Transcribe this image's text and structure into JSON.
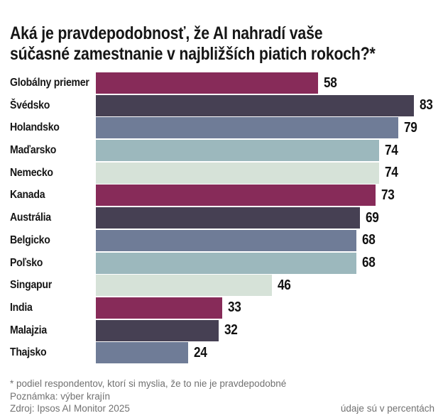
{
  "title_lines": [
    "Aká je pravdepodobnosť, že AI nahradí vaše",
    "súčasné zamestnanie v najbližších piatich rokoch?*"
  ],
  "chart_data": {
    "type": "bar",
    "orientation": "horizontal",
    "title": "Aká je pravdepodobnosť, že AI nahradí vaše súčasné zamestnanie v najbližších piatich rokoch?*",
    "categories": [
      "Globálny priemer",
      "Švédsko",
      "Holandsko",
      "Maďarsko",
      "Nemecko",
      "Kanada",
      "Austrália",
      "Belgicko",
      "Poľsko",
      "Singapur",
      "India",
      "Malajzia",
      "Thajsko"
    ],
    "values": [
      58,
      83,
      79,
      74,
      74,
      73,
      69,
      68,
      68,
      46,
      33,
      32,
      24
    ],
    "bar_colors": [
      "#872b59",
      "#464053",
      "#6f7c97",
      "#9cb8bd",
      "#d6e2d8",
      "#872b59",
      "#464053",
      "#6f7c97",
      "#9cb8bd",
      "#d6e2d8",
      "#872b59",
      "#464053",
      "#6f7c97"
    ],
    "palette": [
      "#872b59",
      "#464053",
      "#6f7c97",
      "#9cb8bd",
      "#d6e2d8"
    ],
    "units": "percent",
    "xlim": [
      0,
      86
    ],
    "grid": false,
    "legend": "none",
    "value_labels": "outside-end"
  },
  "footer": {
    "footnote": "* podiel respondentov, ktorí si myslia, že to nie je pravdepodobné",
    "note": "Poznámka: výber krajín",
    "source": "Zdroj: Ipsos AI Monitor 2025",
    "units": "údaje sú v percentách"
  },
  "colors": {
    "background": "#ffffff",
    "title_text": "#161616",
    "value_text": "#111111",
    "footer_text": "#717171"
  }
}
